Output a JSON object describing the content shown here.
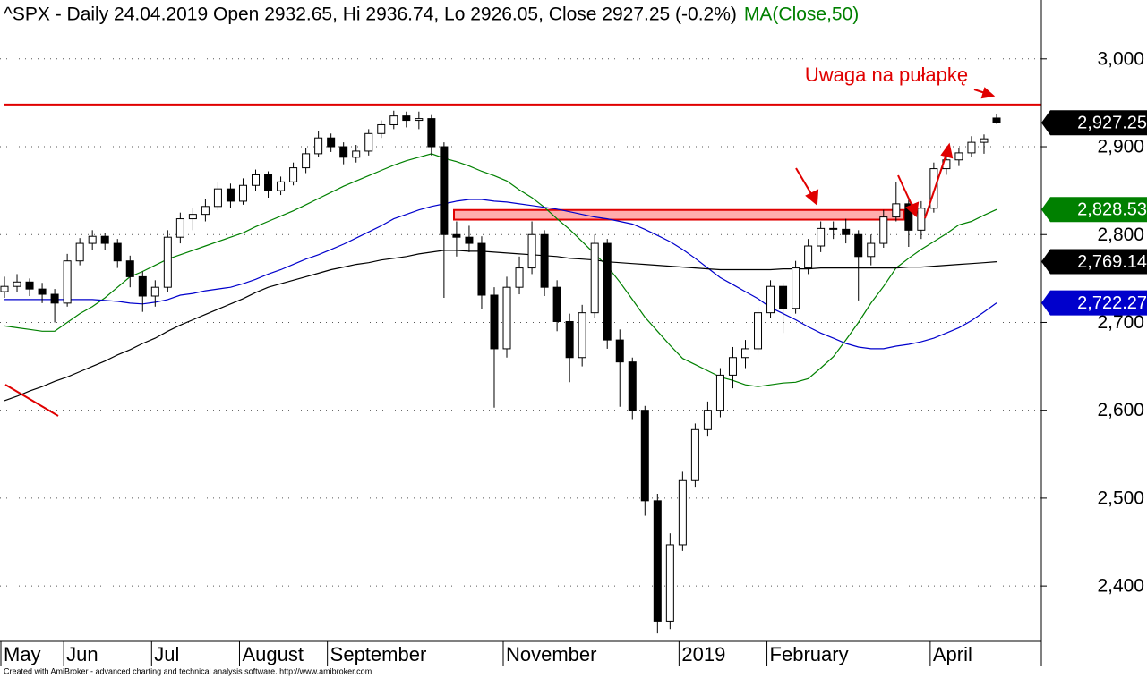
{
  "chart_data": {
    "type": "candlestick",
    "title": "^SPX - Daily 24.04.2019 Open 2932.65, Hi 2936.74, Lo 2926.05, Close 2927.25 (-0.2%)",
    "subtitle": "MA(Close,50)",
    "annotation": "Uwaga na pułapkę",
    "footer": "Created with AmiBroker - advanced charting and technical analysis software. http://www.amibroker.com",
    "categories": [
      "May",
      null,
      null,
      null,
      null,
      "Jun",
      null,
      null,
      null,
      null,
      null,
      null,
      "Jul",
      null,
      null,
      null,
      null,
      null,
      null,
      "August",
      null,
      null,
      null,
      null,
      null,
      null,
      "September",
      null,
      null,
      null,
      null,
      null,
      null,
      null,
      null,
      null,
      null,
      null,
      null,
      null,
      "November",
      null,
      null,
      null,
      null,
      null,
      null,
      null,
      null,
      null,
      null,
      null,
      null,
      null,
      "2019",
      null,
      null,
      null,
      null,
      null,
      null,
      "February",
      null,
      null,
      null,
      null,
      null,
      null,
      null,
      null,
      null,
      null,
      null,
      null,
      "April",
      null,
      null,
      null,
      null,
      null
    ],
    "open": [
      2735,
      2741,
      2746,
      2738,
      2732,
      2722,
      2770,
      2790,
      2798,
      2790,
      2770,
      2752,
      2730,
      2740,
      2797,
      2818,
      2823,
      2832,
      2852,
      2838,
      2856,
      2868,
      2850,
      2860,
      2876,
      2892,
      2910,
      2900,
      2888,
      2895,
      2915,
      2925,
      2935,
      2930,
      2932,
      2900,
      2800,
      2797,
      2790,
      2731,
      2670,
      2740,
      2762,
      2800,
      2740,
      2701,
      2660,
      2711,
      2790,
      2680,
      2655,
      2600,
      2497,
      2360,
      2447,
      2520,
      2578,
      2600,
      2640,
      2660,
      2670,
      2711,
      2741,
      2716,
      2762,
      2787,
      2807,
      2806,
      2800,
      2775,
      2790,
      2820,
      2835,
      2805,
      2830,
      2875,
      2885,
      2893,
      2905,
      2932.65
    ],
    "high": [
      2752,
      2755,
      2750,
      2745,
      2738,
      2778,
      2796,
      2805,
      2802,
      2795,
      2776,
      2758,
      2748,
      2805,
      2825,
      2830,
      2840,
      2860,
      2858,
      2864,
      2874,
      2872,
      2866,
      2882,
      2898,
      2918,
      2915,
      2905,
      2902,
      2920,
      2930,
      2941,
      2940,
      2940,
      2936,
      2905,
      2815,
      2810,
      2798,
      2740,
      2752,
      2775,
      2815,
      2805,
      2748,
      2710,
      2720,
      2800,
      2795,
      2692,
      2660,
      2605,
      2505,
      2460,
      2530,
      2585,
      2610,
      2648,
      2672,
      2680,
      2718,
      2748,
      2745,
      2770,
      2795,
      2815,
      2815,
      2818,
      2805,
      2800,
      2828,
      2860,
      2840,
      2838,
      2882,
      2892,
      2898,
      2912,
      2914,
      2936.74
    ],
    "low": [
      2728,
      2735,
      2730,
      2722,
      2700,
      2718,
      2765,
      2782,
      2782,
      2762,
      2740,
      2712,
      2718,
      2735,
      2790,
      2805,
      2815,
      2828,
      2830,
      2834,
      2850,
      2842,
      2845,
      2856,
      2870,
      2888,
      2894,
      2880,
      2882,
      2890,
      2910,
      2920,
      2922,
      2920,
      2890,
      2728,
      2775,
      2780,
      2715,
      2603,
      2660,
      2732,
      2755,
      2730,
      2690,
      2632,
      2650,
      2705,
      2670,
      2604,
      2590,
      2480,
      2346,
      2351,
      2440,
      2512,
      2570,
      2592,
      2625,
      2648,
      2665,
      2705,
      2688,
      2710,
      2755,
      2780,
      2795,
      2790,
      2725,
      2765,
      2785,
      2815,
      2786,
      2795,
      2825,
      2868,
      2878,
      2888,
      2892,
      2926.05
    ],
    "close": [
      2741,
      2746,
      2738,
      2732,
      2722,
      2770,
      2790,
      2798,
      2790,
      2770,
      2752,
      2730,
      2740,
      2797,
      2818,
      2823,
      2832,
      2852,
      2838,
      2856,
      2868,
      2850,
      2860,
      2876,
      2892,
      2910,
      2900,
      2888,
      2895,
      2915,
      2925,
      2935,
      2930,
      2932,
      2900,
      2800,
      2797,
      2790,
      2731,
      2670,
      2740,
      2762,
      2800,
      2740,
      2701,
      2660,
      2711,
      2790,
      2680,
      2655,
      2600,
      2497,
      2360,
      2447,
      2520,
      2578,
      2600,
      2640,
      2660,
      2670,
      2711,
      2741,
      2716,
      2762,
      2787,
      2807,
      2806,
      2800,
      2775,
      2790,
      2820,
      2835,
      2805,
      2830,
      2875,
      2885,
      2893,
      2905,
      2909,
      2927.25
    ],
    "close_label": "2,927.25",
    "lines": [
      {
        "color": "#008000",
        "last_label": "2,828.53",
        "values": [
          2696,
          2694,
          2692,
          2690,
          2690,
          2700,
          2710,
          2718,
          2728,
          2740,
          2752,
          2758,
          2765,
          2772,
          2777,
          2782,
          2787,
          2792,
          2797,
          2802,
          2809,
          2815,
          2821,
          2827,
          2834,
          2841,
          2848,
          2855,
          2861,
          2867,
          2873,
          2879,
          2884,
          2888,
          2892,
          2887,
          2883,
          2878,
          2872,
          2867,
          2861,
          2851,
          2842,
          2831,
          2818,
          2806,
          2792,
          2778,
          2764,
          2746,
          2726,
          2706,
          2690,
          2674,
          2659,
          2652,
          2645,
          2638,
          2634,
          2629,
          2627,
          2629,
          2631,
          2632,
          2636,
          2648,
          2661,
          2680,
          2700,
          2722,
          2741,
          2762,
          2773,
          2783,
          2792,
          2801,
          2811,
          2815,
          2822,
          2828.53
        ]
      },
      {
        "color": "#0000cc",
        "last_label": "2,722.27",
        "values": [
          2726,
          2726,
          2726,
          2726,
          2726,
          2726,
          2726,
          2726,
          2725,
          2724,
          2722,
          2721,
          2723,
          2726,
          2731,
          2733,
          2736,
          2738,
          2740,
          2744,
          2749,
          2755,
          2760,
          2766,
          2772,
          2777,
          2783,
          2789,
          2796,
          2803,
          2810,
          2818,
          2823,
          2828,
          2832,
          2835,
          2838,
          2840,
          2840,
          2838,
          2837,
          2835,
          2833,
          2831,
          2829,
          2826,
          2823,
          2820,
          2818,
          2815,
          2812,
          2806,
          2799,
          2792,
          2783,
          2773,
          2762,
          2751,
          2743,
          2735,
          2727,
          2717,
          2710,
          2703,
          2695,
          2688,
          2682,
          2676,
          2672,
          2670,
          2670,
          2673,
          2675,
          2678,
          2682,
          2688,
          2694,
          2702,
          2712,
          2722.27
        ]
      },
      {
        "color": "#000000",
        "last_label": "2,769.14",
        "values": [
          2611,
          2616,
          2622,
          2627,
          2633,
          2638,
          2644,
          2650,
          2656,
          2663,
          2669,
          2676,
          2682,
          2690,
          2697,
          2703,
          2709,
          2715,
          2721,
          2727,
          2734,
          2740,
          2744,
          2748,
          2752,
          2756,
          2760,
          2763,
          2766,
          2768,
          2771,
          2773,
          2775,
          2778,
          2780,
          2782,
          2782,
          2781,
          2781,
          2780,
          2779,
          2778,
          2777,
          2776,
          2775,
          2773,
          2772,
          2771,
          2769,
          2768,
          2767,
          2766,
          2765,
          2764,
          2763,
          2762,
          2761,
          2760,
          2760,
          2760,
          2760,
          2760,
          2761,
          2761,
          2761,
          2762,
          2762,
          2762,
          2762,
          2762,
          2762,
          2762,
          2763,
          2763,
          2764,
          2765,
          2766,
          2767,
          2768,
          2769.14
        ]
      }
    ],
    "level": 2948,
    "zone": [
      2817,
      2828
    ],
    "ylim": [
      2337,
      3067
    ],
    "yticks": [
      {
        "value": 2400,
        "label": "2,400"
      },
      {
        "value": 2500,
        "label": "2,500"
      },
      {
        "value": 2600,
        "label": "2,600"
      },
      {
        "value": 2700,
        "label": "2,700"
      },
      {
        "value": 2800,
        "label": "2,800"
      },
      {
        "value": 2900,
        "label": "2,900"
      },
      {
        "value": 3000,
        "label": "3,000"
      }
    ],
    "grid": true
  }
}
